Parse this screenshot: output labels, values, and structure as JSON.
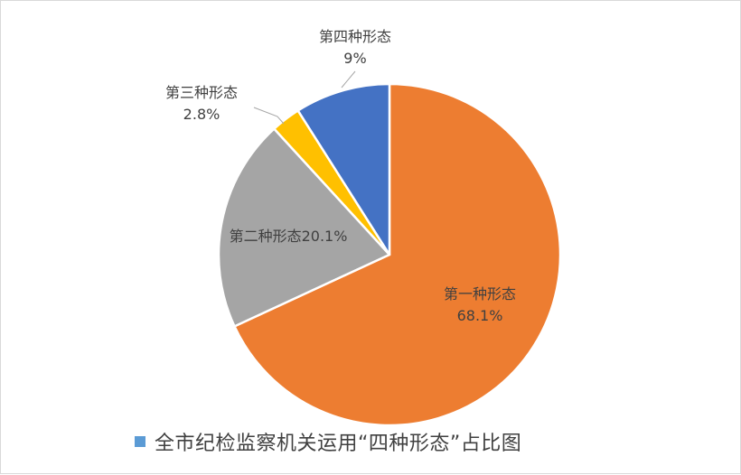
{
  "chart_data": {
    "type": "pie",
    "series": [
      {
        "name": "全市纪检监察机关运用“四种形态”占比图",
        "slices": [
          {
            "label": "第一种形态",
            "value": 68.1,
            "display": "68.1%",
            "color": "#ED7D31"
          },
          {
            "label": "第二种形态",
            "value": 20.1,
            "display": "20.1%",
            "color": "#A5A5A5"
          },
          {
            "label": "第三种形态",
            "value": 2.8,
            "display": "2.8%",
            "color": "#FFC000"
          },
          {
            "label": "第四种形态",
            "value": 9,
            "display": "9%",
            "color": "#4472C4"
          }
        ]
      }
    ],
    "legend": {
      "position": "bottom",
      "color": "#5B9BD5"
    },
    "start_angle_deg": 0,
    "direction": "clockwise"
  }
}
